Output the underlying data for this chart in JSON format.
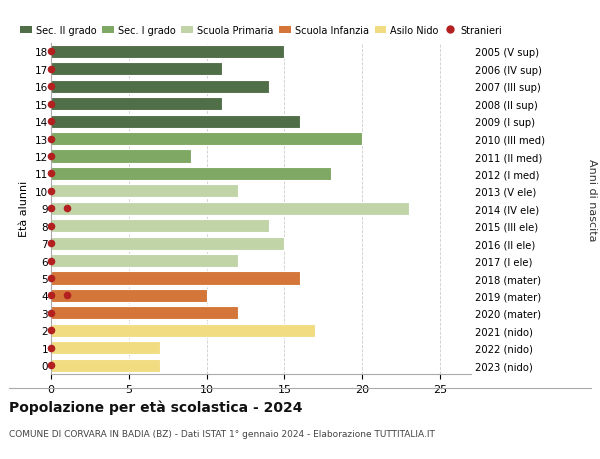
{
  "ages": [
    18,
    17,
    16,
    15,
    14,
    13,
    12,
    11,
    10,
    9,
    8,
    7,
    6,
    5,
    4,
    3,
    2,
    1,
    0
  ],
  "years": [
    "2005 (V sup)",
    "2006 (IV sup)",
    "2007 (III sup)",
    "2008 (II sup)",
    "2009 (I sup)",
    "2010 (III med)",
    "2011 (II med)",
    "2012 (I med)",
    "2013 (V ele)",
    "2014 (IV ele)",
    "2015 (III ele)",
    "2016 (II ele)",
    "2017 (I ele)",
    "2018 (mater)",
    "2019 (mater)",
    "2020 (mater)",
    "2021 (nido)",
    "2022 (nido)",
    "2023 (nido)"
  ],
  "values": [
    15,
    11,
    14,
    11,
    16,
    20,
    9,
    18,
    12,
    23,
    14,
    15,
    12,
    16,
    10,
    12,
    17,
    7,
    7
  ],
  "stranieri_vals": [
    0,
    0,
    0,
    0,
    0,
    0,
    0,
    0,
    0,
    1,
    0,
    0,
    0,
    0,
    1,
    0,
    0,
    0,
    0
  ],
  "bar_colors": [
    "#506e47",
    "#506e47",
    "#506e47",
    "#506e47",
    "#506e47",
    "#7fa864",
    "#7fa864",
    "#7fa864",
    "#c0d4a8",
    "#c0d4a8",
    "#c0d4a8",
    "#c0d4a8",
    "#c0d4a8",
    "#d4763a",
    "#d4763a",
    "#d4763a",
    "#f2dc82",
    "#f2dc82",
    "#f2dc82"
  ],
  "legend_labels": [
    "Sec. II grado",
    "Sec. I grado",
    "Scuola Primaria",
    "Scuola Infanzia",
    "Asilo Nido",
    "Stranieri"
  ],
  "legend_colors": [
    "#506e47",
    "#7fa864",
    "#c0d4a8",
    "#d4763a",
    "#f2dc82",
    "#b22020"
  ],
  "stranieri_color": "#b22020",
  "title": "Popolazione per età scolastica - 2024",
  "subtitle": "COMUNE DI CORVARA IN BADIA (BZ) - Dati ISTAT 1° gennaio 2024 - Elaborazione TUTTITALIA.IT",
  "ylabel_left": "Età alunni",
  "ylabel_right": "Anni di nascita",
  "xlim": [
    0,
    27
  ],
  "xticks": [
    0,
    5,
    10,
    15,
    20,
    25
  ],
  "bar_height": 0.75,
  "background_color": "#ffffff",
  "grid_color": "#cccccc"
}
